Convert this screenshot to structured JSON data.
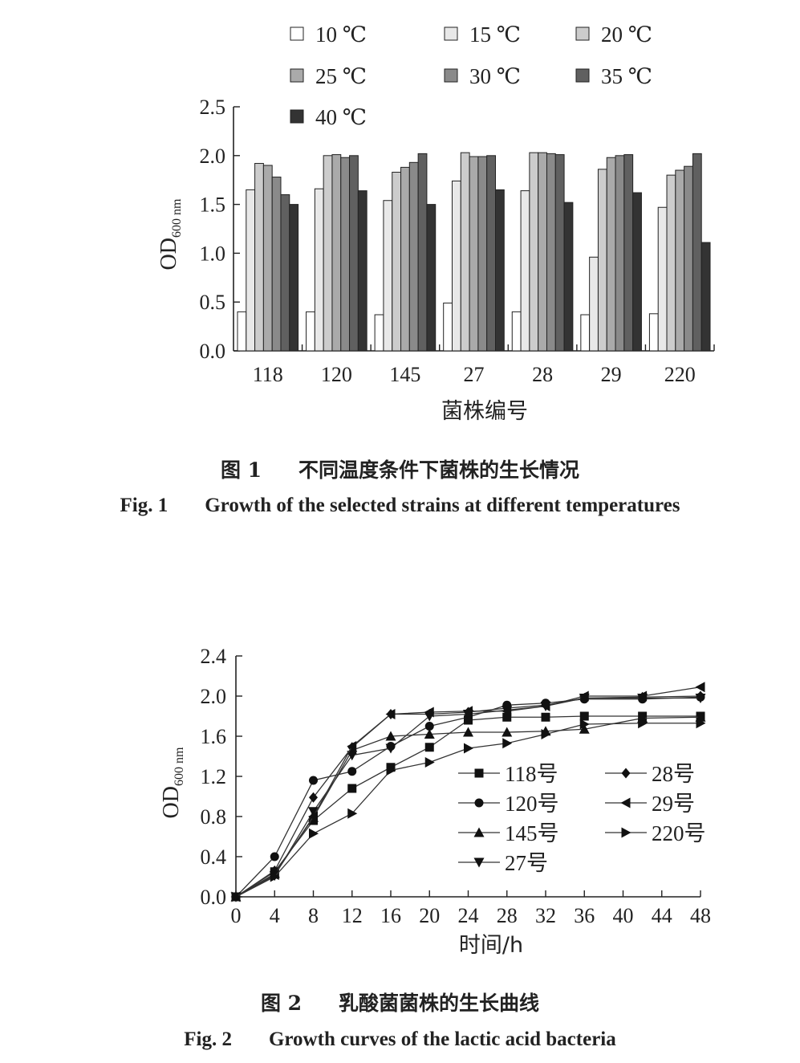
{
  "figure1": {
    "chart_data": {
      "type": "bar",
      "categories": [
        "118",
        "120",
        "145",
        "27",
        "28",
        "29",
        "220"
      ],
      "series": [
        {
          "name": "10 ℃",
          "color": "#ffffff",
          "values": [
            0.4,
            0.4,
            0.37,
            0.49,
            0.4,
            0.37,
            0.38
          ]
        },
        {
          "name": "15 ℃",
          "color": "#e8e8e8",
          "values": [
            1.65,
            1.66,
            1.54,
            1.74,
            1.64,
            0.96,
            1.47
          ]
        },
        {
          "name": "20 ℃",
          "color": "#cccccc",
          "values": [
            1.92,
            2.0,
            1.83,
            2.03,
            2.03,
            1.86,
            1.8
          ]
        },
        {
          "name": "25 ℃",
          "color": "#aaaaaa",
          "values": [
            1.9,
            2.01,
            1.88,
            1.99,
            2.03,
            1.98,
            1.85
          ]
        },
        {
          "name": "30 ℃",
          "color": "#8a8a8a",
          "values": [
            1.78,
            1.98,
            1.93,
            1.99,
            2.02,
            2.0,
            1.89
          ]
        },
        {
          "name": "35 ℃",
          "color": "#606060",
          "values": [
            1.6,
            2.0,
            2.02,
            2.0,
            2.01,
            2.01,
            2.02
          ]
        },
        {
          "name": "40 ℃",
          "color": "#333333",
          "values": [
            1.5,
            1.64,
            1.5,
            1.65,
            1.52,
            1.62,
            1.11
          ]
        }
      ],
      "ylim": [
        0,
        2.5
      ],
      "yticks": [
        "0.0",
        "0.5",
        "1.0",
        "1.5",
        "2.0",
        "2.5"
      ],
      "ylabel_main": "OD",
      "ylabel_sub": "600 nm",
      "xlabel": "菌株编号"
    },
    "caption_cn_num": "图 1",
    "caption_cn": "不同温度条件下菌株的生长情况",
    "caption_en_num": "Fig. 1",
    "caption_en": "Growth of the selected strains at different temperatures"
  },
  "figure2": {
    "chart_data": {
      "type": "line",
      "x": [
        0,
        4,
        8,
        12,
        16,
        20,
        24,
        28,
        32,
        36,
        42,
        48
      ],
      "series": [
        {
          "name": "118号",
          "marker": "square",
          "values": [
            0,
            0.25,
            0.76,
            1.08,
            1.29,
            1.49,
            1.76,
            1.79,
            1.79,
            1.8,
            1.8,
            1.8
          ]
        },
        {
          "name": "120号",
          "marker": "circle",
          "values": [
            0,
            0.4,
            1.16,
            1.25,
            1.5,
            1.7,
            1.79,
            1.91,
            1.93,
            1.97,
            1.97,
            1.99
          ]
        },
        {
          "name": "145号",
          "marker": "triangle-up",
          "values": [
            0,
            0.23,
            0.79,
            1.46,
            1.6,
            1.62,
            1.64,
            1.64,
            1.65,
            1.67,
            1.78,
            1.79
          ]
        },
        {
          "name": "27号",
          "marker": "triangle-down",
          "values": [
            0,
            0.21,
            0.85,
            1.41,
            1.48,
            1.8,
            1.82,
            1.86,
            1.9,
            1.98,
            1.98,
            1.98
          ]
        },
        {
          "name": "28号",
          "marker": "diamond",
          "values": [
            0,
            0.26,
            0.99,
            1.49,
            1.82,
            1.82,
            1.84,
            1.88,
            1.91,
            1.98,
            1.99,
            2.0
          ]
        },
        {
          "name": "29号",
          "marker": "triangle-left",
          "values": [
            0,
            0.22,
            0.8,
            1.5,
            1.82,
            1.84,
            1.85,
            1.85,
            1.9,
            2.0,
            2.0,
            2.09
          ]
        },
        {
          "name": "220号",
          "marker": "triangle-right",
          "values": [
            0,
            0.2,
            0.63,
            0.83,
            1.26,
            1.34,
            1.48,
            1.53,
            1.62,
            1.72,
            1.73,
            1.73
          ]
        }
      ],
      "xticks": [
        "0",
        "4",
        "8",
        "12",
        "16",
        "20",
        "24",
        "28",
        "32",
        "36",
        "40",
        "44",
        "48"
      ],
      "yticks": [
        "0.0",
        "0.4",
        "0.8",
        "1.2",
        "1.6",
        "2.0",
        "2.4"
      ],
      "xlim": [
        0,
        48
      ],
      "ylim": [
        0,
        2.4
      ],
      "ylabel_main": "OD",
      "ylabel_sub": "600 nm",
      "xlabel": "时间/h"
    },
    "caption_cn_num": "图 2",
    "caption_cn": "乳酸菌菌株的生长曲线",
    "caption_en_num": "Fig. 2",
    "caption_en": "Growth curves of the lactic acid bacteria"
  }
}
